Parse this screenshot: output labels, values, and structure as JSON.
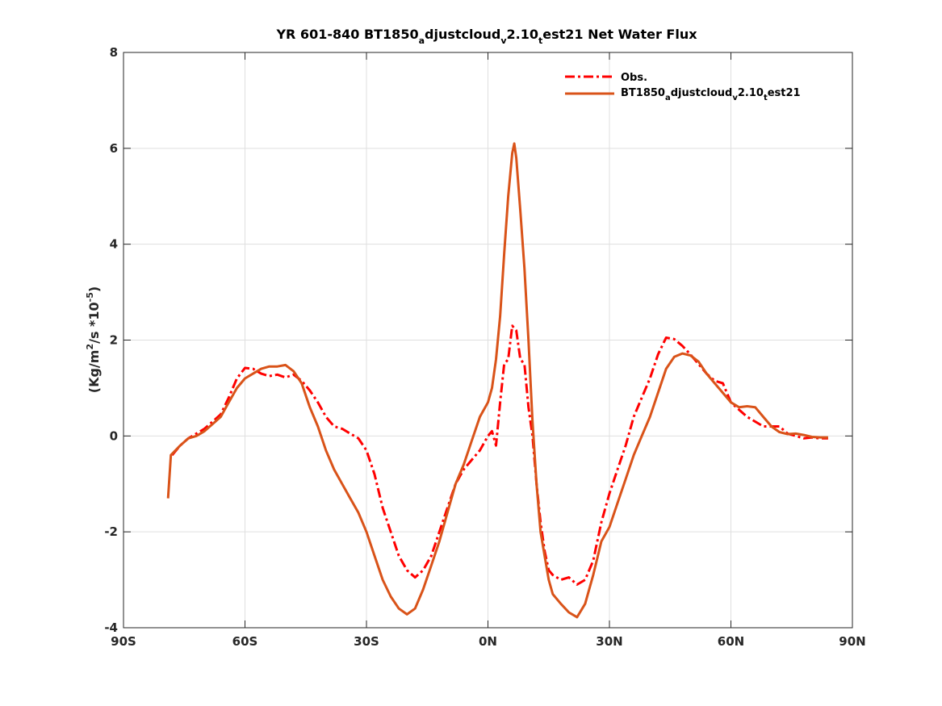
{
  "chart_data": {
    "type": "line",
    "title": {
      "main": "YR 601-840 BT1850",
      "sub1": "a",
      "mid1": "djustcloud",
      "sub2": "v",
      "mid2": "2.10",
      "sub3": "t",
      "mid3": "est21  Net Water Flux"
    },
    "ylabel": {
      "pre": "(Kg/m",
      "sup1": "2",
      "mid": "/s *10",
      "sup2": "-5",
      "post": ")"
    },
    "xlabel": "",
    "xlim": [
      -90,
      90
    ],
    "ylim": [
      -4,
      8
    ],
    "xticks": [
      -90,
      -60,
      -30,
      0,
      30,
      60,
      90
    ],
    "xtick_labels": [
      "90S",
      "60S",
      "30S",
      "0N",
      "30N",
      "60N",
      "90N"
    ],
    "yticks": [
      -4,
      -2,
      0,
      2,
      4,
      6,
      8
    ],
    "ytick_labels": [
      "-4",
      "-2",
      "0",
      "2",
      "4",
      "6",
      "8"
    ],
    "grid": true,
    "legend_position": "top-right",
    "series": [
      {
        "name": "Obs.",
        "color": "#ff0000",
        "style": "dashdot",
        "points": [
          [
            -78,
            -0.4
          ],
          [
            -76,
            -0.2
          ],
          [
            -74,
            -0.05
          ],
          [
            -72,
            0.05
          ],
          [
            -70,
            0.15
          ],
          [
            -68,
            0.3
          ],
          [
            -66,
            0.45
          ],
          [
            -64,
            0.8
          ],
          [
            -62,
            1.2
          ],
          [
            -60,
            1.42
          ],
          [
            -58,
            1.4
          ],
          [
            -56,
            1.3
          ],
          [
            -54,
            1.25
          ],
          [
            -52,
            1.28
          ],
          [
            -50,
            1.22
          ],
          [
            -48,
            1.28
          ],
          [
            -46,
            1.15
          ],
          [
            -44,
            0.95
          ],
          [
            -42,
            0.7
          ],
          [
            -40,
            0.4
          ],
          [
            -38,
            0.2
          ],
          [
            -36,
            0.15
          ],
          [
            -34,
            0.05
          ],
          [
            -32,
            -0.05
          ],
          [
            -30,
            -0.3
          ],
          [
            -28,
            -0.8
          ],
          [
            -26,
            -1.5
          ],
          [
            -24,
            -2.0
          ],
          [
            -22,
            -2.5
          ],
          [
            -20,
            -2.8
          ],
          [
            -18,
            -2.95
          ],
          [
            -16,
            -2.8
          ],
          [
            -14,
            -2.5
          ],
          [
            -12,
            -2.0
          ],
          [
            -10,
            -1.5
          ],
          [
            -8,
            -1.0
          ],
          [
            -6,
            -0.7
          ],
          [
            -4,
            -0.5
          ],
          [
            -2,
            -0.3
          ],
          [
            0,
            0.0
          ],
          [
            1,
            0.1
          ],
          [
            2,
            -0.2
          ],
          [
            3,
            0.7
          ],
          [
            4,
            1.5
          ],
          [
            5,
            1.6
          ],
          [
            6,
            2.3
          ],
          [
            7,
            2.2
          ],
          [
            8,
            1.6
          ],
          [
            9,
            1.5
          ],
          [
            10,
            0.6
          ],
          [
            11,
            0.0
          ],
          [
            12,
            -1.0
          ],
          [
            13,
            -1.8
          ],
          [
            14,
            -2.4
          ],
          [
            15,
            -2.8
          ],
          [
            16,
            -2.9
          ],
          [
            18,
            -3.0
          ],
          [
            20,
            -2.95
          ],
          [
            22,
            -3.1
          ],
          [
            24,
            -3.0
          ],
          [
            26,
            -2.6
          ],
          [
            28,
            -1.8
          ],
          [
            30,
            -1.2
          ],
          [
            32,
            -0.7
          ],
          [
            34,
            -0.2
          ],
          [
            36,
            0.4
          ],
          [
            38,
            0.8
          ],
          [
            40,
            1.2
          ],
          [
            42,
            1.7
          ],
          [
            44,
            2.05
          ],
          [
            46,
            2.02
          ],
          [
            48,
            1.88
          ],
          [
            50,
            1.7
          ],
          [
            52,
            1.5
          ],
          [
            54,
            1.3
          ],
          [
            56,
            1.15
          ],
          [
            58,
            1.1
          ],
          [
            60,
            0.7
          ],
          [
            62,
            0.55
          ],
          [
            64,
            0.4
          ],
          [
            66,
            0.3
          ],
          [
            68,
            0.2
          ],
          [
            70,
            0.2
          ],
          [
            72,
            0.2
          ],
          [
            74,
            0.05
          ],
          [
            76,
            0.0
          ],
          [
            78,
            -0.05
          ],
          [
            80,
            -0.03
          ],
          [
            82,
            -0.05
          ],
          [
            84,
            -0.05
          ]
        ]
      },
      {
        "name": "BT1850_adjustcloud_v2.10_test21",
        "name_parts": {
          "p1": "BT1850",
          "s1": "a",
          "p2": "djustcloud",
          "s2": "v",
          "p3": "2.10",
          "s3": "t",
          "p4": "est21"
        },
        "color": "#d95319",
        "style": "solid",
        "points": [
          [
            -79,
            -1.3
          ],
          [
            -78.3,
            -0.4
          ],
          [
            -76,
            -0.2
          ],
          [
            -74,
            -0.05
          ],
          [
            -72,
            0.0
          ],
          [
            -70,
            0.1
          ],
          [
            -68,
            0.25
          ],
          [
            -66,
            0.4
          ],
          [
            -64,
            0.7
          ],
          [
            -62,
            1.0
          ],
          [
            -60,
            1.2
          ],
          [
            -58,
            1.3
          ],
          [
            -56,
            1.4
          ],
          [
            -54,
            1.45
          ],
          [
            -52,
            1.45
          ],
          [
            -50,
            1.48
          ],
          [
            -48,
            1.35
          ],
          [
            -46,
            1.1
          ],
          [
            -44,
            0.6
          ],
          [
            -42,
            0.2
          ],
          [
            -40,
            -0.3
          ],
          [
            -38,
            -0.7
          ],
          [
            -36,
            -1.0
          ],
          [
            -34,
            -1.3
          ],
          [
            -32,
            -1.6
          ],
          [
            -30,
            -2.0
          ],
          [
            -28,
            -2.5
          ],
          [
            -26,
            -3.0
          ],
          [
            -24,
            -3.35
          ],
          [
            -22,
            -3.6
          ],
          [
            -20,
            -3.72
          ],
          [
            -18,
            -3.6
          ],
          [
            -16,
            -3.2
          ],
          [
            -14,
            -2.7
          ],
          [
            -12,
            -2.2
          ],
          [
            -10,
            -1.6
          ],
          [
            -8,
            -1.0
          ],
          [
            -6,
            -0.6
          ],
          [
            -4,
            -0.1
          ],
          [
            -2,
            0.4
          ],
          [
            0,
            0.7
          ],
          [
            1,
            1.0
          ],
          [
            2,
            1.6
          ],
          [
            3,
            2.5
          ],
          [
            4,
            3.8
          ],
          [
            5,
            5.0
          ],
          [
            6,
            5.9
          ],
          [
            6.5,
            6.1
          ],
          [
            7,
            5.8
          ],
          [
            8,
            4.7
          ],
          [
            9,
            3.5
          ],
          [
            10,
            2.0
          ],
          [
            11,
            0.3
          ],
          [
            12,
            -1.0
          ],
          [
            13,
            -2.0
          ],
          [
            14,
            -2.5
          ],
          [
            15,
            -3.0
          ],
          [
            16,
            -3.3
          ],
          [
            18,
            -3.5
          ],
          [
            20,
            -3.68
          ],
          [
            22,
            -3.78
          ],
          [
            24,
            -3.5
          ],
          [
            26,
            -2.9
          ],
          [
            28,
            -2.2
          ],
          [
            30,
            -1.9
          ],
          [
            32,
            -1.4
          ],
          [
            34,
            -0.9
          ],
          [
            36,
            -0.4
          ],
          [
            38,
            0.0
          ],
          [
            40,
            0.4
          ],
          [
            42,
            0.9
          ],
          [
            44,
            1.4
          ],
          [
            46,
            1.65
          ],
          [
            48,
            1.72
          ],
          [
            50,
            1.68
          ],
          [
            52,
            1.55
          ],
          [
            54,
            1.3
          ],
          [
            56,
            1.1
          ],
          [
            58,
            0.9
          ],
          [
            60,
            0.7
          ],
          [
            62,
            0.6
          ],
          [
            64,
            0.62
          ],
          [
            66,
            0.6
          ],
          [
            68,
            0.4
          ],
          [
            70,
            0.2
          ],
          [
            72,
            0.08
          ],
          [
            74,
            0.04
          ],
          [
            76,
            0.05
          ],
          [
            78,
            0.02
          ],
          [
            80,
            -0.02
          ],
          [
            82,
            -0.03
          ],
          [
            84,
            -0.03
          ]
        ]
      }
    ]
  }
}
